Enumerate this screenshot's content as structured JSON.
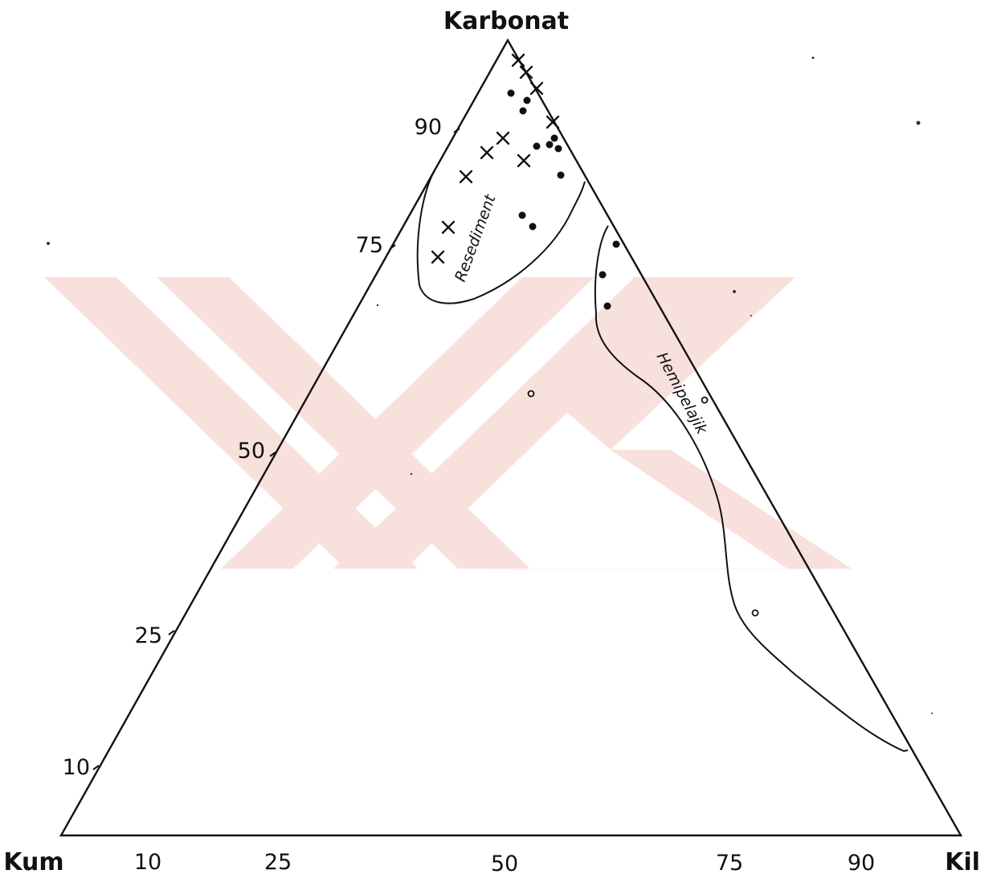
{
  "diagram": {
    "apex_labels": {
      "top": "Karbonat",
      "left": "Kum",
      "right": "Kil"
    },
    "left_axis_ticks": [
      "90",
      "75",
      "50",
      "25",
      "10"
    ],
    "bottom_axis_ticks": [
      "10",
      "25",
      "50",
      "75",
      "90"
    ],
    "regions": {
      "resediment": "Resediment",
      "hemipelagic": "Hemipelajik"
    },
    "colors": {
      "ink": "#111111",
      "watermark": "#f3c9c0"
    }
  }
}
